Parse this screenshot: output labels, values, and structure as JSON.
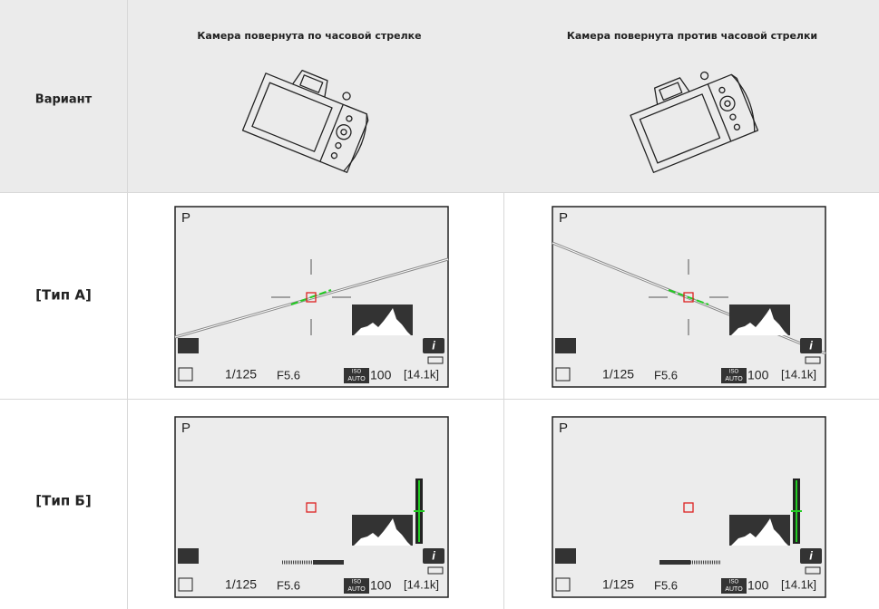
{
  "table": {
    "header": [
      "Вариант",
      "Камера повернута по часовой стрелке",
      "Камера повернута против часовой стрелки"
    ],
    "rows": [
      "[Тип А]",
      "[Тип Б]"
    ]
  },
  "screen": {
    "mode": "P",
    "shutter": "1/125",
    "aperture": "F5.6",
    "iso_top": "ISO",
    "iso_bottom": "AUTO",
    "iso": "100",
    "frames": "[14.1k]",
    "info": "i"
  }
}
